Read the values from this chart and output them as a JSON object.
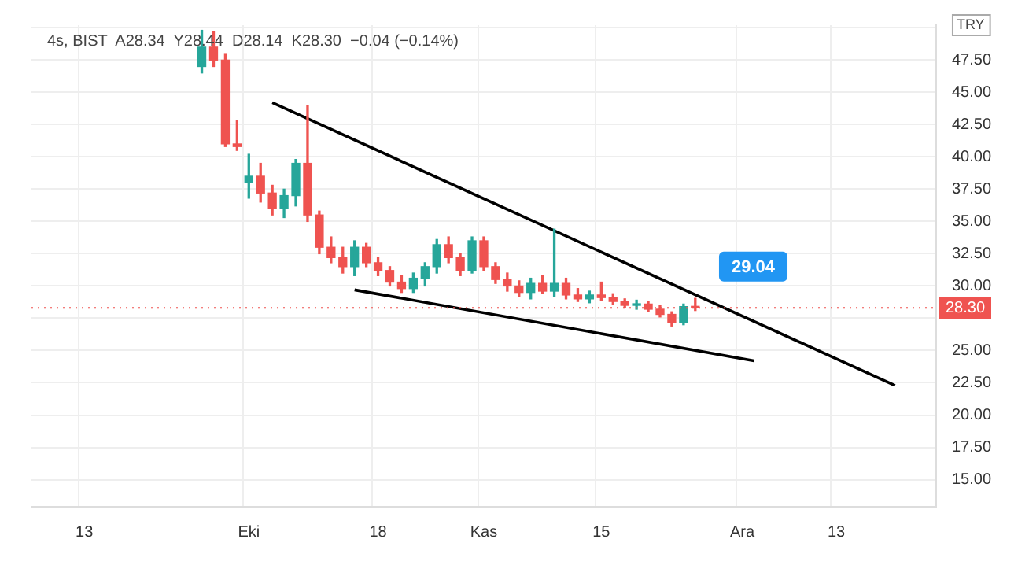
{
  "chart_data": {
    "type": "candlestick",
    "title": "4s, BIST  A28.34  Y28.44  D28.14  K28.30  −0.04 (−0.14%)",
    "ylabel": "TRY",
    "categories": [
      null,
      null,
      null,
      null,
      "13",
      null,
      null,
      null,
      null,
      null,
      null,
      null,
      null,
      null,
      null,
      null,
      null,
      null,
      "Eki",
      null,
      null,
      null,
      null,
      null,
      null,
      null,
      null,
      null,
      null,
      "18",
      null,
      null,
      null,
      null,
      null,
      null,
      null,
      null,
      "Kas",
      null,
      null,
      null,
      null,
      null,
      null,
      null,
      null,
      null,
      "15",
      null,
      null,
      null,
      null,
      null,
      null,
      null,
      null,
      null,
      null,
      null,
      "Ara",
      null,
      null,
      null,
      null,
      null,
      null,
      null,
      "13",
      null,
      null,
      null,
      null,
      null,
      null,
      null,
      null
    ],
    "series": [
      {
        "type": "candlestick",
        "ohlc": [
          null,
          null,
          null,
          null,
          null,
          null,
          null,
          null,
          null,
          null,
          null,
          null,
          null,
          null,
          [
            47.0,
            49.8,
            46.5,
            48.5
          ],
          [
            48.5,
            49.7,
            47.0,
            47.5
          ],
          [
            47.5,
            48.0,
            40.8,
            41.0
          ],
          [
            41.0,
            42.8,
            40.5,
            40.8
          ],
          [
            38.0,
            40.2,
            36.8,
            38.5
          ],
          [
            38.5,
            39.5,
            36.5,
            37.2
          ],
          [
            37.2,
            37.8,
            35.5,
            36.0
          ],
          [
            36.0,
            37.5,
            35.3,
            37.0
          ],
          [
            37.0,
            39.8,
            36.2,
            39.5
          ],
          [
            39.5,
            44.0,
            35.0,
            35.5
          ],
          [
            35.5,
            35.8,
            32.5,
            33.0
          ],
          [
            33.0,
            33.8,
            31.8,
            32.2
          ],
          [
            32.2,
            33.0,
            31.0,
            31.5
          ],
          [
            31.5,
            33.5,
            30.8,
            33.0
          ],
          [
            33.0,
            33.3,
            31.5,
            31.8
          ],
          [
            31.8,
            32.2,
            30.8,
            31.2
          ],
          [
            31.2,
            31.5,
            30.0,
            30.3
          ],
          [
            30.3,
            30.8,
            29.5,
            29.8
          ],
          [
            29.8,
            31.0,
            29.5,
            30.6
          ],
          [
            30.6,
            31.8,
            30.0,
            31.5
          ],
          [
            31.5,
            33.6,
            31.0,
            33.2
          ],
          [
            33.2,
            33.8,
            31.8,
            32.2
          ],
          [
            32.2,
            32.5,
            30.8,
            31.2
          ],
          [
            31.2,
            33.8,
            31.0,
            33.5
          ],
          [
            33.5,
            33.8,
            31.2,
            31.5
          ],
          [
            31.5,
            31.8,
            30.2,
            30.5
          ],
          [
            30.5,
            31.0,
            29.6,
            30.0
          ],
          [
            30.0,
            30.4,
            29.2,
            29.5
          ],
          [
            29.5,
            30.6,
            29.0,
            30.2
          ],
          [
            30.2,
            30.8,
            29.4,
            29.6
          ],
          [
            29.6,
            34.4,
            29.2,
            30.2
          ],
          [
            30.2,
            30.6,
            29.0,
            29.3
          ],
          [
            29.3,
            29.8,
            28.8,
            29.0
          ],
          [
            29.0,
            29.6,
            28.7,
            29.3
          ],
          [
            29.3,
            30.3,
            28.9,
            29.1
          ],
          [
            29.1,
            29.4,
            28.6,
            28.8
          ],
          [
            28.8,
            29.0,
            28.3,
            28.5
          ],
          [
            28.5,
            28.9,
            28.2,
            28.6
          ],
          [
            28.6,
            28.8,
            28.0,
            28.2
          ],
          [
            28.2,
            28.5,
            27.6,
            27.8
          ],
          [
            27.8,
            28.0,
            26.9,
            27.2
          ],
          [
            27.2,
            28.6,
            27.0,
            28.4
          ],
          [
            28.4,
            29.04,
            28.1,
            28.3
          ],
          null,
          null,
          null,
          null,
          null,
          null,
          null,
          null,
          null,
          null,
          null,
          null,
          null,
          null,
          null,
          null,
          null,
          null,
          null,
          null
        ],
        "colors": [
          null,
          null,
          null,
          null,
          null,
          null,
          null,
          null,
          null,
          null,
          null,
          null,
          null,
          null,
          "#26a69a",
          "#ef5350",
          "#ef5350",
          "#ef5350",
          "#26a69a",
          "#ef5350",
          "#ef5350",
          "#26a69a",
          "#26a69a",
          "#ef5350",
          "#ef5350",
          "#ef5350",
          "#ef5350",
          "#26a69a",
          "#ef5350",
          "#ef5350",
          "#ef5350",
          "#ef5350",
          "#26a69a",
          "#26a69a",
          "#26a69a",
          "#ef5350",
          "#ef5350",
          "#26a69a",
          "#ef5350",
          "#ef5350",
          "#ef5350",
          "#ef5350",
          "#26a69a",
          "#ef5350",
          "#26a69a",
          "#ef5350",
          "#ef5350",
          "#26a69a",
          "#ef5350",
          "#ef5350",
          "#ef5350",
          "#26a69a",
          "#ef5350",
          "#ef5350",
          "#ef5350",
          "#26a69a",
          "#ef5350",
          null,
          null,
          null,
          null,
          null,
          null,
          null,
          null,
          null,
          null,
          null,
          null,
          null,
          null,
          null,
          null,
          null,
          null,
          null,
          null
        ]
      },
      {
        "type": "line",
        "color": "#000000",
        "values": [
          null,
          null,
          null,
          null,
          null,
          null,
          null,
          null,
          null,
          null,
          null,
          null,
          null,
          null,
          null,
          null,
          null,
          null,
          null,
          null,
          44.2,
          null,
          null,
          null,
          null,
          null,
          null,
          null,
          null,
          null,
          null,
          null,
          null,
          null,
          null,
          null,
          null,
          null,
          null,
          null,
          null,
          null,
          null,
          null,
          null,
          null,
          null,
          null,
          null,
          null,
          null,
          null,
          null,
          null,
          null,
          null,
          null,
          null,
          null,
          null,
          null,
          null,
          null,
          null,
          null,
          null,
          null,
          null,
          null,
          null,
          null,
          null,
          null,
          22.3,
          null,
          null,
          null
        ]
      },
      {
        "type": "line",
        "color": "#000000",
        "values": [
          null,
          null,
          null,
          null,
          null,
          null,
          null,
          null,
          null,
          null,
          null,
          null,
          null,
          null,
          null,
          null,
          null,
          null,
          null,
          null,
          null,
          null,
          null,
          null,
          null,
          null,
          null,
          29.7,
          null,
          null,
          null,
          null,
          null,
          null,
          null,
          null,
          null,
          null,
          null,
          null,
          null,
          null,
          null,
          null,
          null,
          null,
          null,
          null,
          null,
          null,
          null,
          null,
          null,
          null,
          null,
          null,
          null,
          null,
          null,
          null,
          null,
          24.2,
          null,
          null,
          null,
          null,
          null,
          null,
          null,
          null,
          null,
          null,
          null,
          null,
          null,
          null,
          null
        ]
      }
    ],
    "ylim": [
      12.9,
      50.2
    ],
    "yticks": [
      {
        "value": 15,
        "label": "15.00"
      },
      {
        "value": 17.5,
        "label": "17.50"
      },
      {
        "value": 20,
        "label": "20.00"
      },
      {
        "value": 22.5,
        "label": "22.50"
      },
      {
        "value": 25,
        "label": "25.00"
      },
      {
        "value": 27.5,
        "label": null
      },
      {
        "value": 30,
        "label": "30.00"
      },
      {
        "value": 32.5,
        "label": "32.50"
      },
      {
        "value": 35,
        "label": "35.00"
      },
      {
        "value": 37.5,
        "label": "37.50"
      },
      {
        "value": 40,
        "label": "40.00"
      },
      {
        "value": 42.5,
        "label": "42.50"
      },
      {
        "value": 45,
        "label": "45.00"
      },
      {
        "value": 47.5,
        "label": "47.50"
      },
      {
        "value": 50,
        "label": null
      }
    ],
    "ref_lines": [
      {
        "axis": "y",
        "value": 28.3,
        "label": "28.30",
        "color": "#ef5350",
        "line_style": "dotted"
      }
    ],
    "annotations": [
      "29.04"
    ],
    "grid": true,
    "legend": false
  }
}
